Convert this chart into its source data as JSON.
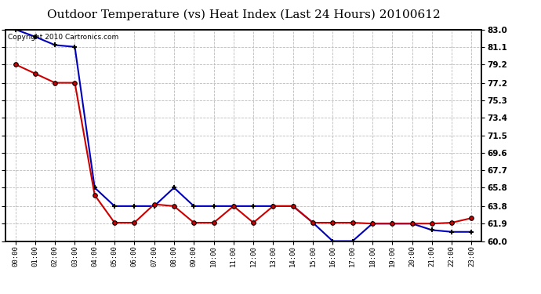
{
  "title": "Outdoor Temperature (vs) Heat Index (Last 24 Hours) 20100612",
  "copyright_text": "Copyright 2010 Cartronics.com",
  "hours": [
    0,
    1,
    2,
    3,
    4,
    5,
    6,
    7,
    8,
    9,
    10,
    11,
    12,
    13,
    14,
    15,
    16,
    17,
    18,
    19,
    20,
    21,
    22,
    23
  ],
  "temp_blue": [
    83.0,
    82.2,
    81.3,
    81.1,
    65.8,
    63.8,
    63.8,
    63.8,
    65.8,
    63.8,
    63.8,
    63.8,
    63.8,
    63.8,
    63.8,
    62.0,
    60.0,
    60.0,
    61.9,
    61.9,
    61.9,
    61.2,
    61.0,
    61.0
  ],
  "heat_red": [
    79.2,
    78.2,
    77.2,
    77.2,
    65.0,
    62.0,
    62.0,
    64.0,
    63.8,
    62.0,
    62.0,
    63.8,
    62.0,
    63.8,
    63.8,
    62.0,
    62.0,
    62.0,
    61.9,
    61.9,
    61.9,
    61.9,
    62.0,
    62.5
  ],
  "ylim_min": 60.0,
  "ylim_max": 83.0,
  "yticks": [
    60.0,
    61.9,
    63.8,
    65.8,
    67.7,
    69.6,
    71.5,
    73.4,
    75.3,
    77.2,
    79.2,
    81.1,
    83.0
  ],
  "blue_color": "#0000bb",
  "red_color": "#cc0000",
  "bg_color": "#ffffff",
  "grid_color": "#bbbbbb",
  "title_fontsize": 11,
  "copyright_fontsize": 6.5
}
